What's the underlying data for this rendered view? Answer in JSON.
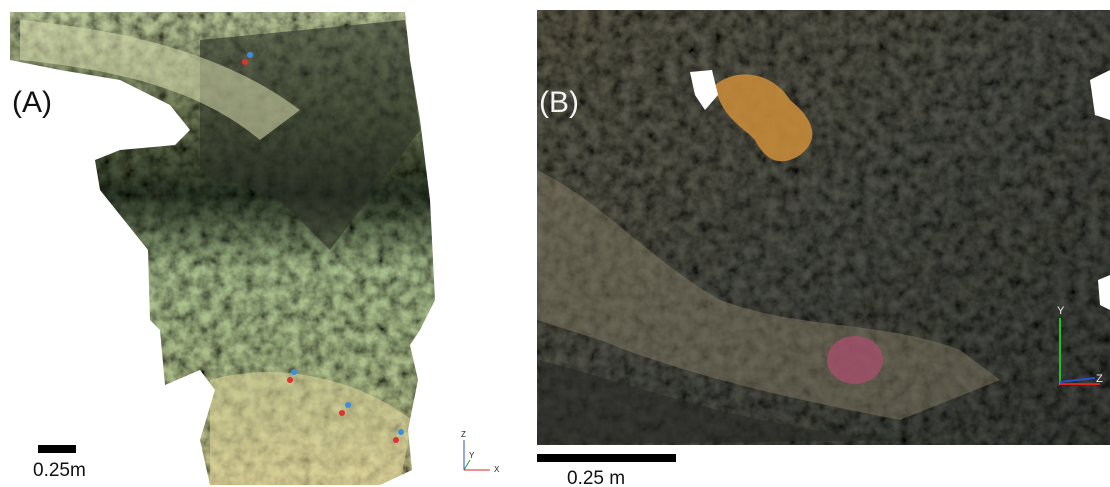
{
  "panels": [
    {
      "label": "(A)",
      "scale": "0.25m",
      "axes": [
        "Z",
        "Y",
        "X"
      ]
    },
    {
      "label": "(B)",
      "scale": "0.25 m",
      "axes": [
        "Y",
        "Z"
      ]
    }
  ]
}
